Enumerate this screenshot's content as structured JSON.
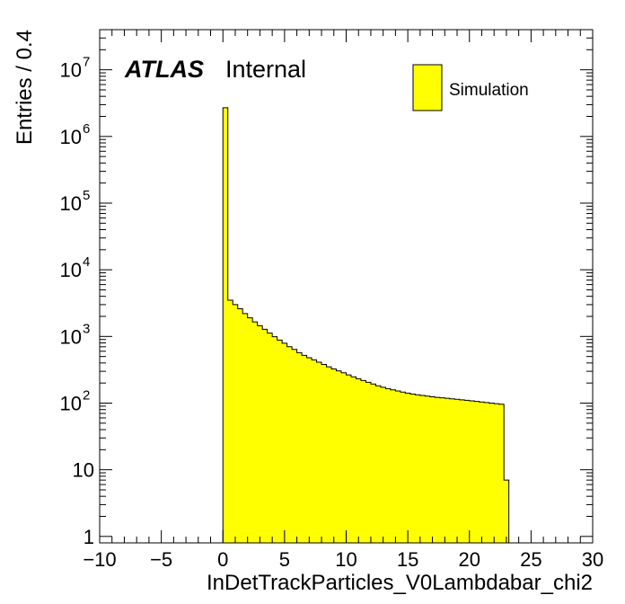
{
  "chart_data": {
    "type": "histogram",
    "xlabel": "InDetTrackParticles_V0Lambdabar_chi2",
    "ylabel": "Entries / 0.4",
    "xlim": [
      -10,
      30
    ],
    "ylim": [
      0.8,
      40000000
    ],
    "yscale": "log",
    "x_ticks": [
      "−10",
      "−5",
      "0",
      "5",
      "10",
      "15",
      "20",
      "25",
      "30"
    ],
    "y_ticks": [
      {
        "value": 1,
        "base": "1",
        "exp": ""
      },
      {
        "value": 10,
        "base": "10",
        "exp": ""
      },
      {
        "value": 100,
        "base": "10",
        "exp": "2"
      },
      {
        "value": 1000,
        "base": "10",
        "exp": "3"
      },
      {
        "value": 10000,
        "base": "10",
        "exp": "4"
      },
      {
        "value": 100000,
        "base": "10",
        "exp": "5"
      },
      {
        "value": 1000000,
        "base": "10",
        "exp": "6"
      },
      {
        "value": 10000000,
        "base": "10",
        "exp": "7"
      }
    ],
    "bin_width": 0.4,
    "bin_start": 0,
    "values": [
      2700000,
      3500,
      3000,
      2600,
      2200,
      1900,
      1650,
      1450,
      1280,
      1120,
      990,
      880,
      790,
      700,
      640,
      570,
      520,
      480,
      445,
      410,
      380,
      350,
      325,
      305,
      285,
      265,
      248,
      232,
      218,
      205,
      193,
      182,
      173,
      165,
      158,
      152,
      146,
      141,
      137,
      133,
      130,
      127,
      124,
      122,
      120,
      118,
      116,
      114,
      112,
      110,
      108,
      106,
      104,
      102,
      100,
      98,
      96,
      7
    ],
    "legend": {
      "position": "top-right",
      "entries": [
        {
          "label": "Simulation",
          "color": "#ffff00"
        }
      ]
    },
    "annotations": {
      "atlas": "ATLAS",
      "status": "Internal"
    },
    "fill_color": "#ffff00",
    "line_color": "#000000"
  }
}
